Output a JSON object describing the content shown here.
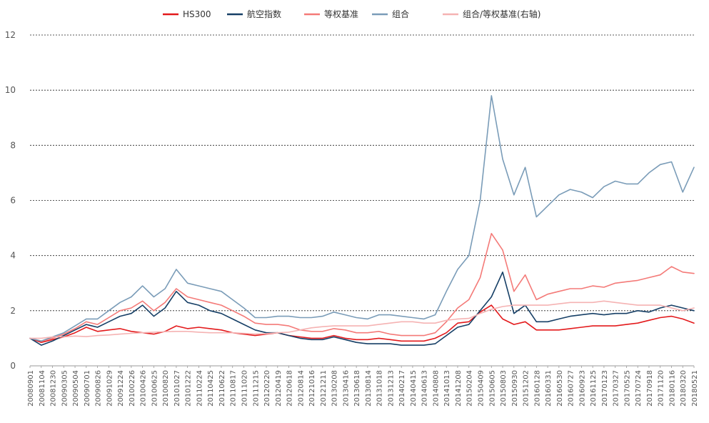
{
  "chart_data": {
    "type": "line",
    "title": "",
    "xlabel": "",
    "ylabel": "",
    "ylim": [
      0,
      12
    ],
    "yticks": [
      0,
      2,
      4,
      6,
      8,
      10,
      12
    ],
    "grid": "horizontal dashed",
    "legend_position": "top",
    "x": [
      "20080901",
      "20081104",
      "20081230",
      "20090305",
      "20090504",
      "20090701",
      "20090826",
      "20091029",
      "20091224",
      "20100226",
      "20100426",
      "20100625",
      "20100820",
      "20101027",
      "20101222",
      "20110224",
      "20110425",
      "20110622",
      "20110817",
      "20111020",
      "20111215",
      "20120220",
      "20120419",
      "20120618",
      "20120814",
      "20121016",
      "20121211",
      "20130208",
      "20130416",
      "20130618",
      "20130814",
      "20131018",
      "20131213",
      "20140217",
      "20140415",
      "20140613",
      "20140808",
      "20141013",
      "20141208",
      "20150204",
      "20150409",
      "20150605",
      "20150803",
      "20150930",
      "20151202",
      "20160128",
      "20160331",
      "20160530",
      "20160727",
      "20160923",
      "20161125",
      "20170123",
      "20170327",
      "20170525",
      "20170724",
      "20170918",
      "20171120",
      "20180116",
      "20180320",
      "20180521"
    ],
    "series": [
      {
        "name": "HS300",
        "color": "#e31a1c",
        "values": [
          1.0,
          0.85,
          0.95,
          1.05,
          1.2,
          1.4,
          1.25,
          1.3,
          1.35,
          1.25,
          1.2,
          1.15,
          1.25,
          1.45,
          1.35,
          1.4,
          1.35,
          1.3,
          1.2,
          1.15,
          1.1,
          1.15,
          1.2,
          1.1,
          1.05,
          1.0,
          1.0,
          1.1,
          1.0,
          0.95,
          0.95,
          1.0,
          0.95,
          0.9,
          0.9,
          0.9,
          1.0,
          1.2,
          1.55,
          1.6,
          1.95,
          2.2,
          1.7,
          1.5,
          1.6,
          1.3,
          1.3,
          1.3,
          1.35,
          1.4,
          1.45,
          1.45,
          1.45,
          1.5,
          1.55,
          1.65,
          1.75,
          1.8,
          1.7,
          1.55
        ]
      },
      {
        "name": "航空指数",
        "color": "#163f66",
        "values": [
          1.0,
          0.75,
          0.9,
          1.1,
          1.3,
          1.5,
          1.4,
          1.6,
          1.8,
          1.9,
          2.2,
          1.8,
          2.1,
          2.7,
          2.3,
          2.2,
          2.0,
          1.9,
          1.7,
          1.5,
          1.3,
          1.2,
          1.2,
          1.1,
          1.0,
          0.95,
          0.95,
          1.05,
          0.95,
          0.85,
          0.8,
          0.8,
          0.8,
          0.75,
          0.75,
          0.75,
          0.8,
          1.1,
          1.4,
          1.5,
          2.0,
          2.5,
          3.4,
          1.9,
          2.2,
          1.6,
          1.6,
          1.7,
          1.8,
          1.85,
          1.9,
          1.85,
          1.9,
          1.9,
          2.0,
          1.95,
          2.1,
          2.2,
          2.1,
          2.0
        ]
      },
      {
        "name": "等权基准",
        "color": "#f47a78",
        "values": [
          1.0,
          0.9,
          1.0,
          1.15,
          1.35,
          1.6,
          1.5,
          1.75,
          2.0,
          2.1,
          2.35,
          2.0,
          2.3,
          2.8,
          2.5,
          2.4,
          2.3,
          2.2,
          2.0,
          1.8,
          1.55,
          1.5,
          1.5,
          1.45,
          1.3,
          1.25,
          1.25,
          1.35,
          1.3,
          1.2,
          1.2,
          1.25,
          1.15,
          1.1,
          1.1,
          1.1,
          1.2,
          1.6,
          2.1,
          2.4,
          3.2,
          4.8,
          4.2,
          2.7,
          3.3,
          2.4,
          2.6,
          2.7,
          2.8,
          2.8,
          2.9,
          2.85,
          3.0,
          3.05,
          3.1,
          3.2,
          3.3,
          3.6,
          3.4,
          3.35
        ]
      },
      {
        "name": "组合",
        "color": "#7a9cb8",
        "values": [
          1.0,
          0.9,
          1.05,
          1.2,
          1.45,
          1.7,
          1.7,
          2.0,
          2.3,
          2.5,
          2.9,
          2.5,
          2.8,
          3.5,
          3.0,
          2.9,
          2.8,
          2.7,
          2.4,
          2.1,
          1.75,
          1.75,
          1.8,
          1.8,
          1.75,
          1.75,
          1.8,
          1.95,
          1.85,
          1.75,
          1.7,
          1.85,
          1.85,
          1.8,
          1.75,
          1.7,
          1.85,
          2.7,
          3.5,
          4.0,
          6.0,
          9.8,
          7.5,
          6.2,
          7.2,
          5.4,
          5.8,
          6.2,
          6.4,
          6.3,
          6.1,
          6.5,
          6.7,
          6.6,
          6.6,
          7.0,
          7.3,
          7.4,
          6.3,
          7.2
        ]
      },
      {
        "name": "组合/等权基准(右轴)",
        "color": "#f5b3b3",
        "values": [
          1.0,
          1.0,
          1.05,
          1.05,
          1.08,
          1.06,
          1.1,
          1.12,
          1.15,
          1.18,
          1.2,
          1.22,
          1.24,
          1.25,
          1.25,
          1.22,
          1.2,
          1.2,
          1.2,
          1.18,
          1.15,
          1.17,
          1.2,
          1.22,
          1.3,
          1.38,
          1.42,
          1.45,
          1.45,
          1.45,
          1.45,
          1.5,
          1.55,
          1.6,
          1.6,
          1.55,
          1.55,
          1.65,
          1.7,
          1.72,
          1.9,
          2.05,
          2.15,
          2.2,
          2.2,
          2.2,
          2.2,
          2.25,
          2.3,
          2.3,
          2.3,
          2.35,
          2.3,
          2.25,
          2.2,
          2.2,
          2.2,
          2.1,
          2.0,
          2.1
        ]
      }
    ]
  }
}
